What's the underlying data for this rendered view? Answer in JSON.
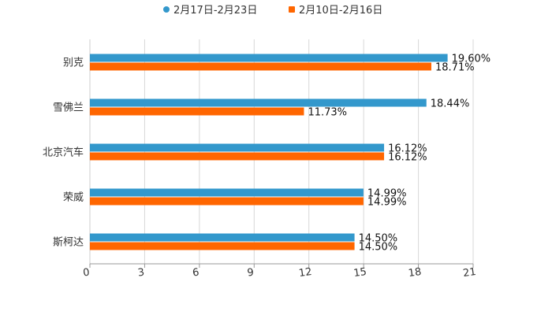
{
  "chart_data": {
    "type": "bar",
    "orientation": "horizontal",
    "categories": [
      "别克",
      "雪佛兰",
      "北京汽车",
      "荣威",
      "斯柯达"
    ],
    "series": [
      {
        "name": "2月17日-2月23日",
        "color": "#3398cc",
        "values": [
          19.6,
          18.44,
          16.12,
          14.99,
          14.5
        ],
        "labels": [
          "19.60%",
          "18.44%",
          "16.12%",
          "14.99%",
          "14.50%"
        ]
      },
      {
        "name": "2月10日-2月16日",
        "color": "#ff6600",
        "values": [
          18.71,
          11.73,
          16.12,
          14.99,
          14.5
        ],
        "labels": [
          "18.71%",
          "11.73%",
          "16.12%",
          "14.99%",
          "14.50%"
        ]
      }
    ],
    "xlim": [
      0,
      21
    ],
    "xticks": [
      "0",
      "3",
      "6",
      "9",
      "12",
      "15",
      "18",
      "21"
    ],
    "grid": true,
    "legend": "top-center",
    "title": "",
    "xlabel": "",
    "ylabel": ""
  }
}
